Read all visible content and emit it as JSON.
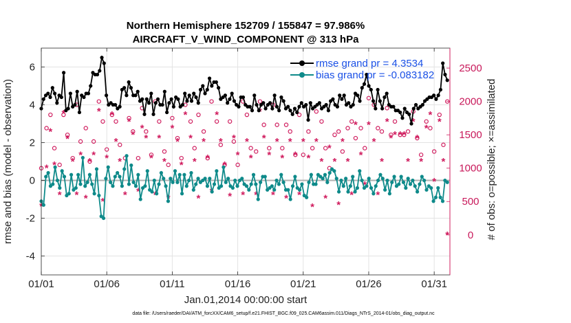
{
  "chart_data": {
    "type": "line",
    "title_line1": "Northern Hemisphere 152709 / 155847 = 97.986%",
    "title_line2": "AIRCRAFT_V_WIND_COMPONENT @ 313 hPa",
    "xlabel": "Jan.01,2014 00:00:00 start",
    "ylabel": "rmse and bias (model - observation)",
    "ylabel_right": "# of obs: o=possible; ×=assimilated",
    "footer": "data file: /Users/raeder/DAI/ATM_forcXX/CAM6_setup/f.e21.FHIST_BGC.f09_025.CAM6assim.011/Diags_NTrS_2014-01/obs_diag_output.nc",
    "xlim": [
      0,
      31.2
    ],
    "ylim": [
      -5,
      7
    ],
    "ylim_right": [
      -600,
      2800
    ],
    "x_ticks": [
      0,
      5,
      10,
      15,
      20,
      25,
      30
    ],
    "x_tick_labels": [
      "01/01",
      "01/06",
      "01/11",
      "01/16",
      "01/21",
      "01/26",
      "01/31"
    ],
    "y_ticks": [
      -4,
      -2,
      0,
      2,
      4,
      6
    ],
    "y_tick_labels": [
      "-4",
      "-2",
      "0",
      "2",
      "4",
      "6"
    ],
    "y_ticks_right": [
      0,
      500,
      1000,
      1500,
      2000,
      2500
    ],
    "y_tick_labels_right": [
      "0",
      "500",
      "1000",
      "1500",
      "2000",
      "2500"
    ],
    "colors": {
      "rmse": "#000000",
      "bias": "#0e8a8a",
      "obs": "#d01c5e",
      "zero_line": "#b0b0b0",
      "grid": "#e3e3e3"
    },
    "legend": {
      "placement": "top-right",
      "rmse": "rmse grand pr = 4.3534",
      "bias": "bias grand pr = -0.083182"
    },
    "series": [
      {
        "name": "rmse",
        "values": [
          3.8,
          4.3,
          4.5,
          4.6,
          4.4,
          4.9,
          4.6,
          4.1,
          4.5,
          4.4,
          5.7,
          3.7,
          3.8,
          4.6,
          3.9,
          4.0,
          4.7,
          3.6,
          4.5,
          4.4,
          4.6,
          4.6,
          5.0,
          5.7,
          5.6,
          5.6,
          5.8,
          6.5,
          6.2,
          4.5,
          4.0,
          4.1,
          4.0,
          4.0,
          3.8,
          3.9,
          4.8,
          4.9,
          4.5,
          5.2,
          4.9,
          4.5,
          4.5,
          4.7,
          4.2,
          4.3,
          3.5,
          4.3,
          4.1,
          4.6,
          3.5,
          4.1,
          4.3,
          4.0,
          4.0,
          4.7,
          3.6,
          4.1,
          4.3,
          3.9,
          4.4,
          4.3,
          3.9,
          4.0,
          4.6,
          4.2,
          4.5,
          4.2,
          4.6,
          4.4,
          4.1,
          4.8,
          5.0,
          4.6,
          4.8,
          5.4,
          5.0,
          5.2,
          5.2,
          4.9,
          4.3,
          4.4,
          4.5,
          4.1,
          4.3,
          4.6,
          4.2,
          4.0,
          3.9,
          4.4,
          4.4,
          4.0,
          3.9,
          3.9,
          3.7,
          4.5,
          4.0,
          3.7,
          4.0,
          4.1,
          3.8,
          4.0,
          4.1,
          3.8,
          4.5,
          3.9,
          3.7,
          4.4,
          4.2,
          3.8,
          3.9,
          3.7,
          3.5,
          3.8,
          3.6,
          3.9,
          4.1,
          3.9,
          4.0,
          3.2,
          4.1,
          3.8,
          3.9,
          4.0,
          4.1,
          3.8,
          3.9,
          4.0,
          3.7,
          4.2,
          4.3,
          4.0,
          3.9,
          4.5,
          4.3,
          4.5,
          4.0,
          4.1,
          3.9,
          4.0,
          4.6,
          4.5,
          4.2,
          4.9,
          5.1,
          5.6,
          5.0,
          4.8,
          4.2,
          3.8,
          4.8,
          4.2,
          3.8,
          4.4,
          4.6,
          4.0,
          3.9,
          3.9,
          3.7,
          3.7,
          3.6,
          3.3,
          3.8,
          3.6,
          3.5,
          3.0,
          3.8,
          4.0,
          3.8,
          3.9,
          4.0,
          4.2,
          4.3,
          4.4,
          4.4,
          4.5,
          4.3,
          4.5,
          4.8,
          6.2,
          5.6,
          5.3
        ]
      },
      {
        "name": "bias",
        "values": [
          -1.1,
          -1.3,
          0.2,
          0.4,
          -0.3,
          -0.2,
          0.7,
          0.0,
          -0.4,
          0.5,
          0.2,
          -0.8,
          -0.7,
          0.3,
          -0.5,
          -0.4,
          0.3,
          -0.2,
          1.2,
          -0.3,
          -0.1,
          0.3,
          -0.2,
          -0.7,
          0.6,
          -0.8,
          -1.9,
          -2.0,
          0.1,
          0.7,
          -0.1,
          -0.3,
          0.2,
          0.4,
          0.2,
          -0.3,
          0.6,
          1.3,
          -0.2,
          0.8,
          -0.1,
          -0.3,
          0.3,
          -1.0,
          -0.4,
          -0.3,
          0.5,
          -0.5,
          -0.6,
          0.0,
          -0.7,
          -0.2,
          0.4,
          0.1,
          -0.3,
          -1.1,
          0.1,
          -0.1,
          0.5,
          -0.1,
          0.3,
          -0.7,
          0.3,
          -0.3,
          0.0,
          0.4,
          -0.5,
          -0.2,
          0.1,
          -0.1,
          0.0,
          0.1,
          -0.3,
          0.1,
          -0.6,
          -0.2,
          0.5,
          -0.4,
          -0.3,
          0.7,
          -0.1,
          0.1,
          -0.3,
          -0.4,
          0.0,
          -0.3,
          0.0,
          0.1,
          -0.2,
          -0.3,
          -0.5,
          -0.2,
          0.3,
          -0.2,
          -1.0,
          -0.1,
          0.2,
          0.2,
          -0.5,
          -0.4,
          -0.3,
          -0.5,
          0.0,
          -0.2,
          0.3,
          -0.1,
          -0.5,
          -0.5,
          -1.0,
          -0.3,
          0.2,
          -0.4,
          -0.5,
          -0.2,
          -0.8,
          -0.9,
          -0.1,
          0.3,
          -0.2,
          -0.2,
          0.3,
          0.2,
          0.1,
          0.3,
          -0.1,
          0.4,
          0.6,
          0.5,
          0.1,
          -0.6,
          0.0,
          -0.3,
          0.1,
          -0.6,
          -0.3,
          0.2,
          -0.6,
          -0.4,
          0.5,
          0.0,
          -0.4,
          -0.3,
          0.1,
          -0.4,
          -0.7,
          -0.3,
          0.0,
          0.3,
          0.1,
          -0.5,
          0.0,
          -0.7,
          -0.1,
          0.2,
          -0.3,
          -0.2,
          0.2,
          -0.1,
          -0.4,
          0.1,
          -0.2,
          0.0,
          -0.3,
          -0.6,
          -0.2,
          0.2,
          0.0,
          -0.5,
          -0.3,
          -0.4,
          -1.1,
          -0.9,
          -0.4,
          -0.9,
          -1.1,
          0.0,
          -0.1
        ]
      },
      {
        "name": "obs_possible",
        "x": [
          0.0,
          0.4,
          0.7,
          1.0,
          1.4,
          1.7,
          2.0,
          2.4,
          2.7,
          3.0,
          3.4,
          3.7,
          4.0,
          4.4,
          4.7,
          5.0,
          5.4,
          5.7,
          6.0,
          6.4,
          6.7,
          7.0,
          7.4,
          7.7,
          8.0,
          8.4,
          8.7,
          9.0,
          9.4,
          9.7,
          10.0,
          10.4,
          10.7,
          11.0,
          11.4,
          11.7,
          12.0,
          12.4,
          12.7,
          13.0,
          13.4,
          13.7,
          14.0,
          14.4,
          14.7,
          15.0,
          15.4,
          15.7,
          16.0,
          16.4,
          16.7,
          17.0,
          17.4,
          17.7,
          18.0,
          18.4,
          18.7,
          19.0,
          19.4,
          19.7,
          20.0,
          20.4,
          20.7,
          21.0,
          21.4,
          21.7,
          22.0,
          22.4,
          22.7,
          23.0,
          23.4,
          23.7,
          24.0,
          24.4,
          24.7,
          25.0,
          25.4,
          25.7,
          26.0,
          26.4,
          26.7,
          27.0,
          27.4,
          27.7,
          28.0,
          28.4,
          28.7,
          29.0,
          29.4,
          29.7,
          30.0,
          30.4,
          30.7,
          31.0
        ],
        "values": [
          1000,
          1600,
          1800,
          1300,
          1050,
          1800,
          1500,
          1150,
          1950,
          1400,
          1600,
          1100,
          1400,
          2000,
          1700,
          1280,
          1800,
          1700,
          1350,
          1150,
          1750,
          1550,
          1150,
          1900,
          1550,
          1200,
          2000,
          1700,
          1250,
          1050,
          1750,
          1450,
          1150,
          1950,
          1700,
          1300,
          1800,
          1550,
          1150,
          2000,
          1700,
          1350,
          1050,
          1700,
          1400,
          1050,
          2000,
          1800,
          1300,
          1250,
          2000,
          1650,
          1300,
          1950,
          1650,
          1300,
          1650,
          1550,
          1200,
          1800,
          1200,
          1550,
          1300,
          1850,
          1700,
          1300,
          1000,
          1500,
          1550,
          1250,
          1600,
          1700,
          1450,
          1600,
          1300,
          2050,
          1950,
          1600,
          1550,
          1900,
          1500,
          1700,
          1500,
          1500,
          1550,
          1850,
          1450,
          1200,
          1700,
          1600,
          1250,
          1800,
          1350,
          2000
        ]
      },
      {
        "name": "obs_assimilated",
        "x": [
          0.0,
          0.4,
          0.7,
          1.0,
          1.4,
          1.7,
          2.0,
          2.4,
          2.7,
          3.0,
          3.4,
          3.7,
          4.0,
          4.4,
          4.7,
          5.0,
          5.4,
          5.7,
          6.0,
          6.4,
          6.7,
          7.0,
          7.4,
          7.7,
          8.0,
          8.4,
          8.7,
          9.0,
          9.4,
          9.7,
          10.0,
          10.4,
          10.7,
          11.0,
          11.4,
          11.7,
          12.0,
          12.4,
          12.7,
          13.0,
          13.4,
          13.7,
          14.0,
          14.4,
          14.7,
          15.0,
          15.4,
          15.7,
          16.0,
          16.4,
          16.7,
          17.0,
          17.4,
          17.7,
          18.0,
          18.4,
          18.7,
          19.0,
          19.4,
          19.7,
          20.0,
          20.4,
          20.7,
          21.0,
          21.4,
          21.7,
          22.0,
          22.4,
          22.7,
          23.0,
          23.4,
          23.7,
          24.0,
          24.4,
          24.7,
          25.0,
          25.4,
          25.7,
          26.0,
          26.4,
          26.7,
          27.0,
          27.4,
          27.7,
          28.0,
          28.4,
          28.7,
          29.0,
          29.4,
          29.7,
          30.0,
          30.4,
          30.7,
          31.0
        ],
        "values": [
          430,
          1000,
          1550,
          1050,
          600,
          1820,
          1440,
          1100,
          600,
          1200,
          550,
          1100,
          1200,
          1850,
          500,
          1150,
          1800,
          1400,
          1100,
          600,
          1700,
          1500,
          650,
          1600,
          1450,
          1150,
          600,
          1450,
          1100,
          550,
          1600,
          1400,
          1050,
          1800,
          1450,
          1100,
          550,
          1400,
          1150,
          650,
          1800,
          1400,
          1050,
          580,
          1450,
          1200,
          600,
          1400,
          1150,
          600,
          1850,
          1450,
          1200,
          600,
          1400,
          1150,
          550,
          1400,
          1200,
          600,
          1400,
          1150,
          420,
          1400,
          1100,
          550,
          1300,
          1100,
          450,
          1400,
          1100,
          600,
          1650,
          1200,
          750,
          1650,
          1400,
          600,
          1100,
          1700,
          1450,
          1500,
          1500,
          1500,
          1100,
          1700,
          1450,
          1100,
          1600,
          1800,
          800,
          1700,
          1100,
          0
        ]
      }
    ]
  }
}
